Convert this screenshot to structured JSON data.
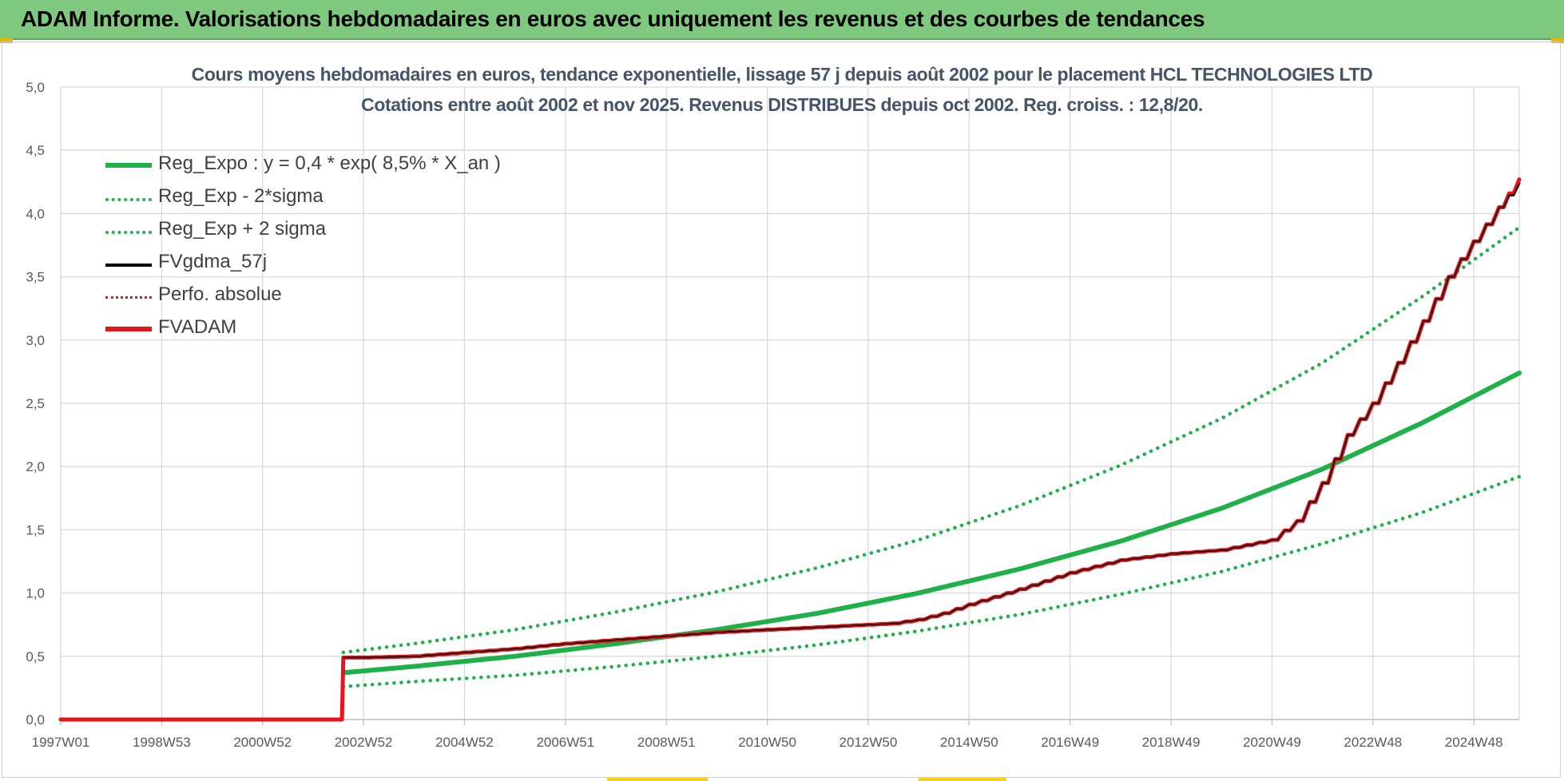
{
  "banner": {
    "title": "ADAM Informe. Valorisations hebdomadaires en euros avec uniquement les revenus et des courbes de tendances"
  },
  "chart_data": {
    "type": "line",
    "title_line1": "Cours moyens hebdomadaires en euros, tendance exponentielle, lissage 57 j depuis août 2002 pour le placement  HCL TECHNOLOGIES LTD",
    "title_line2": "Cotations entre août 2002 et nov 2025. Revenus DISTRIBUES depuis oct 2002. Reg. croiss. : 12,8/20.",
    "xlabel": "",
    "ylabel": "",
    "xlim": [
      1997.0,
      2025.9
    ],
    "ylim": [
      0,
      5
    ],
    "y_ticks": [
      0,
      0.5,
      1,
      1.5,
      2,
      2.5,
      3,
      3.5,
      4,
      4.5,
      5
    ],
    "y_tick_labels": [
      "0,0",
      "0,5",
      "1,0",
      "1,5",
      "2,0",
      "2,5",
      "3,0",
      "3,5",
      "4,0",
      "4,5",
      "5,0"
    ],
    "x_ticks": [
      {
        "label": "1997W01",
        "x": 1997.0
      },
      {
        "label": "1998W53",
        "x": 1999.0
      },
      {
        "label": "2000W52",
        "x": 2001.0
      },
      {
        "label": "2002W52",
        "x": 2003.0
      },
      {
        "label": "2004W52",
        "x": 2005.0
      },
      {
        "label": "2006W51",
        "x": 2007.0
      },
      {
        "label": "2008W51",
        "x": 2009.0
      },
      {
        "label": "2010W50",
        "x": 2011.0
      },
      {
        "label": "2012W50",
        "x": 2013.0
      },
      {
        "label": "2014W50",
        "x": 2015.0
      },
      {
        "label": "2016W49",
        "x": 2017.0
      },
      {
        "label": "2018W49",
        "x": 2019.0
      },
      {
        "label": "2020W49",
        "x": 2021.0
      },
      {
        "label": "2022W48",
        "x": 2023.0
      },
      {
        "label": "2024W48",
        "x": 2025.0
      }
    ],
    "grid": true,
    "legend_position": "top-left",
    "series": [
      {
        "name": "Reg_Expo : y = 0,4 * exp( 8,5% *  X_an )",
        "color": "#1fb04a",
        "style": "solid",
        "x": [
          2002.6,
          2004,
          2006,
          2008,
          2010,
          2012,
          2014,
          2016,
          2018,
          2020,
          2022,
          2024,
          2025.9
        ],
        "values": [
          0.37,
          0.42,
          0.5,
          0.6,
          0.71,
          0.84,
          1.0,
          1.19,
          1.41,
          1.67,
          1.98,
          2.35,
          2.74
        ]
      },
      {
        "name": "Reg_Exp - 2*sigma",
        "color": "#1fb04a",
        "style": "dotted",
        "x": [
          2002.6,
          2004,
          2006,
          2008,
          2010,
          2012,
          2014,
          2016,
          2018,
          2020,
          2022,
          2024,
          2025.9
        ],
        "values": [
          0.26,
          0.3,
          0.35,
          0.42,
          0.5,
          0.59,
          0.7,
          0.83,
          0.99,
          1.17,
          1.39,
          1.64,
          1.92
        ]
      },
      {
        "name": "Reg_Exp + 2 sigma",
        "color": "#1fb04a",
        "style": "dotted",
        "x": [
          2002.6,
          2004,
          2006,
          2008,
          2010,
          2012,
          2014,
          2016,
          2018,
          2020,
          2022,
          2024,
          2025.9
        ],
        "values": [
          0.53,
          0.6,
          0.71,
          0.85,
          1.01,
          1.2,
          1.42,
          1.69,
          2.01,
          2.38,
          2.82,
          3.35,
          3.89
        ]
      },
      {
        "name": "FVgdma_57j",
        "color": "#000000",
        "style": "solid",
        "x": [
          2002.6,
          2003,
          2004,
          2005,
          2006,
          2007,
          2008,
          2009,
          2010,
          2011,
          2012,
          2013,
          2013.5,
          2014,
          2014.5,
          2015,
          2016,
          2017,
          2018,
          2019,
          2020,
          2020.5,
          2021,
          2021.5,
          2022,
          2022.5,
          2023,
          2023.5,
          2024,
          2024.5,
          2025,
          2025.5,
          2025.9
        ],
        "values": [
          0.49,
          0.49,
          0.5,
          0.53,
          0.56,
          0.6,
          0.63,
          0.66,
          0.69,
          0.71,
          0.73,
          0.75,
          0.76,
          0.79,
          0.84,
          0.91,
          1.03,
          1.16,
          1.26,
          1.31,
          1.34,
          1.38,
          1.42,
          1.57,
          1.87,
          2.25,
          2.5,
          2.82,
          3.15,
          3.5,
          3.78,
          4.05,
          4.24
        ]
      },
      {
        "name": "Perfo. absolue",
        "color": "#e8141b",
        "style": "dotted",
        "x": [
          1997.0,
          2002.55,
          2002.6,
          2003,
          2004,
          2005,
          2006,
          2007,
          2008,
          2009,
          2010,
          2011,
          2012,
          2013,
          2013.5,
          2014,
          2014.5,
          2015,
          2016,
          2017,
          2018,
          2019,
          2020,
          2020.5,
          2021,
          2021.5,
          2022,
          2022.5,
          2023,
          2023.5,
          2024,
          2024.5,
          2025,
          2025.5,
          2025.9
        ],
        "values": [
          0.0,
          0.0,
          0.49,
          0.49,
          0.5,
          0.53,
          0.56,
          0.6,
          0.63,
          0.66,
          0.69,
          0.71,
          0.73,
          0.75,
          0.76,
          0.79,
          0.84,
          0.91,
          1.03,
          1.16,
          1.26,
          1.31,
          1.34,
          1.38,
          1.42,
          1.57,
          1.87,
          2.25,
          2.5,
          2.82,
          3.15,
          3.5,
          3.78,
          4.05,
          4.27
        ]
      },
      {
        "name": "FVADAM",
        "color": "#e8141b",
        "style": "solid",
        "x": [
          1997.0,
          2002.55,
          2002.6,
          2003,
          2004,
          2005,
          2006,
          2007,
          2008,
          2009,
          2010,
          2011,
          2012,
          2013,
          2013.5,
          2014,
          2014.5,
          2015,
          2016,
          2017,
          2018,
          2019,
          2020,
          2020.5,
          2021,
          2021.5,
          2022,
          2022.5,
          2023,
          2023.5,
          2024,
          2024.5,
          2025,
          2025.5,
          2025.9
        ],
        "values": [
          0.0,
          0.0,
          0.49,
          0.49,
          0.5,
          0.53,
          0.56,
          0.6,
          0.63,
          0.66,
          0.69,
          0.71,
          0.73,
          0.75,
          0.76,
          0.79,
          0.84,
          0.91,
          1.03,
          1.16,
          1.26,
          1.31,
          1.34,
          1.38,
          1.42,
          1.57,
          1.87,
          2.25,
          2.5,
          2.82,
          3.15,
          3.5,
          3.78,
          4.05,
          4.27
        ]
      }
    ]
  }
}
